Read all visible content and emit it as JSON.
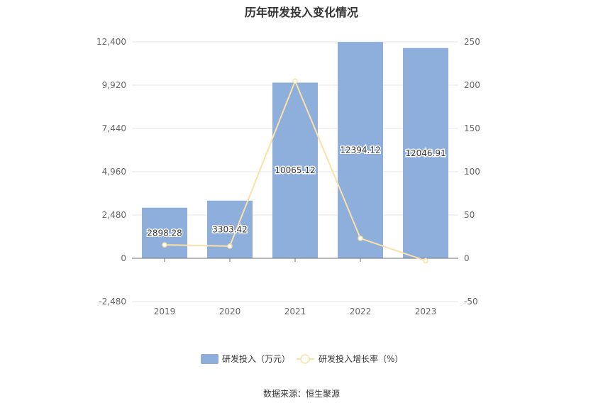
{
  "title": "历年研发投入变化情况",
  "source": "数据来源：恒生聚源",
  "chart_data": {
    "type": "bar",
    "categories": [
      "2019",
      "2020",
      "2021",
      "2022",
      "2023"
    ],
    "series": [
      {
        "name": "研发投入（万元）",
        "type": "bar",
        "axis": "left",
        "color": "#8eaedb",
        "values": [
          2898.28,
          3303.42,
          10065.12,
          12394.12,
          12046.91
        ],
        "labels": [
          "2898.28",
          "3303.42",
          "10065.12",
          "12394.12",
          "12046.91"
        ]
      },
      {
        "name": "研发投入增长率（%）",
        "type": "line",
        "axis": "right",
        "color": "#fbe0a8",
        "values": [
          15.5,
          14.0,
          204.7,
          23.1,
          -2.8
        ]
      }
    ],
    "y_left": {
      "min": -2480,
      "max": 12400,
      "ticks": [
        -2480,
        0,
        2480,
        4960,
        7440,
        9920,
        12400
      ],
      "tick_labels": [
        "-2,480",
        "0",
        "2,480",
        "4,960",
        "7,440",
        "9,920",
        "12,400"
      ]
    },
    "y_right": {
      "min": -50,
      "max": 250,
      "ticks": [
        -50,
        0,
        50,
        100,
        150,
        200,
        250
      ],
      "tick_labels": [
        "-50",
        "0",
        "50",
        "100",
        "150",
        "200",
        "250"
      ]
    },
    "grid": true,
    "legend_position": "bottom"
  }
}
